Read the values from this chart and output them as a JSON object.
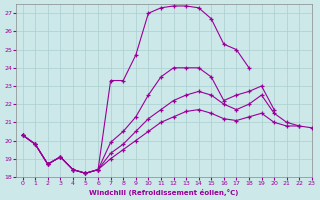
{
  "xlabel": "Windchill (Refroidissement éolien,°C)",
  "xlim": [
    -0.5,
    23
  ],
  "ylim": [
    18,
    27.5
  ],
  "xticks": [
    0,
    1,
    2,
    3,
    4,
    5,
    6,
    7,
    8,
    9,
    10,
    11,
    12,
    13,
    14,
    15,
    16,
    17,
    18,
    19,
    20,
    21,
    22,
    23
  ],
  "yticks": [
    18,
    19,
    20,
    21,
    22,
    23,
    24,
    25,
    26,
    27
  ],
  "background_color": "#cce8e8",
  "grid_color": "#aacfcf",
  "line_color": "#990099",
  "lines": [
    {
      "x": [
        0,
        1,
        2,
        3,
        4,
        5,
        6,
        7,
        8,
        9,
        10,
        11,
        12,
        13,
        14,
        15,
        16,
        17,
        18,
        19,
        20,
        21,
        22,
        23
      ],
      "y": [
        20.3,
        19.8,
        18.7,
        19.1,
        18.4,
        18.2,
        18.4,
        23.3,
        23.3,
        24.7,
        27.0,
        27.3,
        27.4,
        27.4,
        27.3,
        26.7,
        25.3,
        25.0,
        24.0,
        null,
        null,
        null,
        null,
        null
      ]
    },
    {
      "x": [
        0,
        1,
        2,
        3,
        4,
        5,
        6,
        7,
        8,
        9,
        10,
        11,
        12,
        13,
        14,
        15,
        16,
        17,
        18,
        19,
        20,
        21,
        22,
        23
      ],
      "y": [
        20.3,
        19.8,
        18.7,
        19.1,
        18.4,
        18.2,
        18.4,
        19.9,
        20.5,
        21.3,
        22.5,
        23.5,
        24.0,
        24.0,
        24.0,
        23.5,
        22.2,
        22.5,
        22.7,
        23.0,
        21.7,
        null,
        null,
        null
      ]
    },
    {
      "x": [
        0,
        1,
        2,
        3,
        4,
        5,
        6,
        7,
        8,
        9,
        10,
        11,
        12,
        13,
        14,
        15,
        16,
        17,
        18,
        19,
        20,
        21,
        22,
        23
      ],
      "y": [
        20.3,
        19.8,
        18.7,
        19.1,
        18.4,
        18.2,
        18.4,
        19.3,
        19.8,
        20.5,
        21.2,
        21.7,
        22.2,
        22.5,
        22.7,
        22.5,
        22.0,
        21.7,
        22.0,
        22.5,
        21.5,
        21.0,
        20.8,
        null
      ]
    },
    {
      "x": [
        0,
        1,
        2,
        3,
        4,
        5,
        6,
        7,
        8,
        9,
        10,
        11,
        12,
        13,
        14,
        15,
        16,
        17,
        18,
        19,
        20,
        21,
        22,
        23
      ],
      "y": [
        20.3,
        19.8,
        18.7,
        19.1,
        18.4,
        18.2,
        18.4,
        19.0,
        19.5,
        20.0,
        20.5,
        21.0,
        21.3,
        21.6,
        21.7,
        21.5,
        21.2,
        21.1,
        21.3,
        21.5,
        21.0,
        20.8,
        20.8,
        20.7
      ]
    }
  ]
}
